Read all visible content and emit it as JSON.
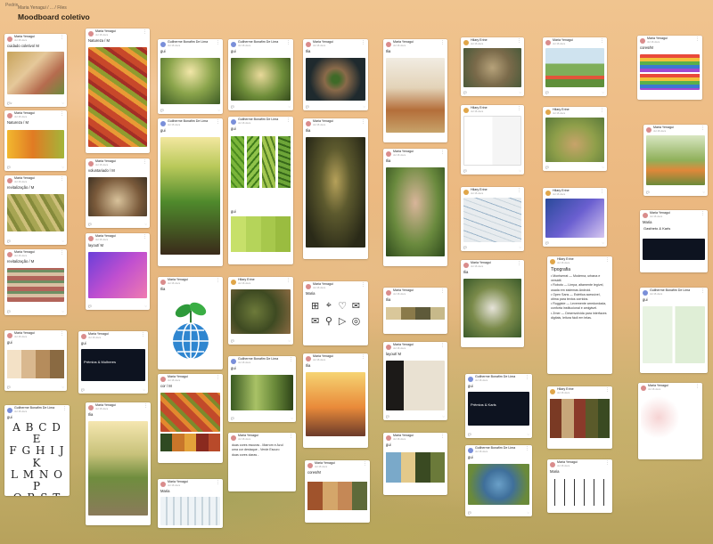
{
  "header": {
    "top_crumb": "Pedrin",
    "breadcrumb": "Maria Yenagui / ... / Files",
    "title": "Moodboard coletivo"
  },
  "common": {
    "date": "Jul 16 docs"
  },
  "cards": {
    "c1": {
      "user": "Maria Yenagui",
      "label": "cuidado coletivo/ M"
    },
    "c2": {
      "user": "Maria Yenagui",
      "label": "Natureza / M"
    },
    "c3": {
      "user": "Maria Yenagui",
      "label": "revitalização / M"
    },
    "c4": {
      "user": "Maria Yenagui",
      "label": "revitalização / M"
    },
    "c5": {
      "user": "Maria Yenagui",
      "label": "gui"
    },
    "c6": {
      "user": "Guilherme Bonafim De Lima",
      "label": "gui",
      "letters": "A B C D E\nF G H I J K\nL M N O P\nQ R S T U\nV W X Y Z"
    },
    "c7": {
      "user": "Maria Yenagui",
      "label": "Natureza / M"
    },
    "c8": {
      "user": "Maria Yenagui",
      "label": "voluntariado / M"
    },
    "c9": {
      "user": "Maria Yenagui",
      "label": "layout/ M"
    },
    "c10": {
      "user": "Maria Yenagui",
      "label": "gui",
      "title": "Prêmios & Mulheres"
    },
    "c11": {
      "user": "Maria Yenagui",
      "label": "Ilia"
    },
    "c12": {
      "user": "Guilherme Bonafim De Lima",
      "label": "gui"
    },
    "c13": {
      "user": "Guilherme Bonafim De Lima",
      "label": "gui"
    },
    "c14": {
      "user": "Maria Yenagui",
      "label": "Ilia"
    },
    "c15": {
      "user": "Maria Yenagui",
      "label": "cor / M"
    },
    "c16": {
      "user": "Guilherme Bonafim De Lima",
      "label": "gui"
    },
    "c17": {
      "user": "Guilherme Bonafim De Lima",
      "label": "gui"
    },
    "c18": {
      "user": "Guilherme Bonafim De Lima",
      "label": "gui"
    },
    "c19": {
      "user": "Hilary Erine",
      "label": ""
    },
    "c20": {
      "user": "Guilherme Bonafim De Lima",
      "label": "gui"
    },
    "c21": {
      "user": "Maria Yenagui",
      "label": "duas cores escuras - Marrom e Azul\numa cor destaque - Verde Escuro\nduas cores claras -"
    },
    "c22": {
      "user": "Maria Yenagui",
      "label": "Ilia"
    },
    "c23": {
      "user": "Maria Yenagui",
      "label": "Ilia"
    },
    "c24": {
      "user": "Maria Yenagui",
      "label": "Maria"
    },
    "c25": {
      "user": "Maria Yenagui",
      "label": "Ilia"
    },
    "c26": {
      "user": "Maria Yenagui",
      "label": "cores/M"
    },
    "c27": {
      "user": "Maria Yenagui",
      "label": "Ilia"
    },
    "c28": {
      "user": "Maria Yenagui",
      "label": "Ilia"
    },
    "c29": {
      "user": "Maria Yenagui",
      "label": "Ilia"
    },
    "c30": {
      "user": "Maria Yenagui",
      "label": "layout/ M"
    },
    "c31": {
      "user": "Maria Yenagui",
      "label": "gui"
    },
    "c32": {
      "user": "Hilary Erine",
      "label": ""
    },
    "c33": {
      "user": "Hilary Erine",
      "label": ""
    },
    "c34": {
      "user": "Hilary Erine",
      "label": ""
    },
    "c35": {
      "user": "Maria Yenagui",
      "label": "Ilia"
    },
    "c36": {
      "user": "Guilherme Bonafim De Lima",
      "label": "gui",
      "title": "Prêmios & Karls"
    },
    "c37": {
      "user": "Guilherme Bonafim De Lima",
      "label": "gui"
    },
    "c38": {
      "user": "Maria Yenagui",
      "label": ""
    },
    "c39": {
      "user": "Hilary Erine",
      "label": ""
    },
    "c40": {
      "user": "Hilary Erine",
      "label": ""
    },
    "c41": {
      "user": "Hilary Erine",
      "label": "",
      "title": "Tipografia",
      "lines": [
        "• Montserrat — Moderna, urbana e versátil.",
        "• Roboto — Limpa, altamente legível, usada em sistemas Android.",
        "• Open Sans — Estética acessível, ótima para textos corridos.",
        "• Ruggiste — Levemente arredondada, conforta institucional e amigável.",
        "• Zmer — Desenvolvida para interfaces digitais, leitura fácil em telas."
      ]
    },
    "c42": {
      "user": "Hilary Erine",
      "label": ""
    },
    "c43": {
      "user": "Maria Yenagui",
      "label": "Maria"
    },
    "c44": {
      "user": "Maria Yenagui",
      "label": "cores/M"
    },
    "c45": {
      "user": "Maria Yenagui",
      "label": ""
    },
    "c46": {
      "user": "Maria Yenagui",
      "label": "Maria",
      "title": "Gastheto & Karls"
    },
    "c47": {
      "user": "Guilherme Bonafim De Lima",
      "label": "gui"
    },
    "c48": {
      "user": "Maria Yenagui",
      "label": ""
    }
  },
  "colors": {
    "card": "#ffffff",
    "accent": "#e06a4a"
  }
}
